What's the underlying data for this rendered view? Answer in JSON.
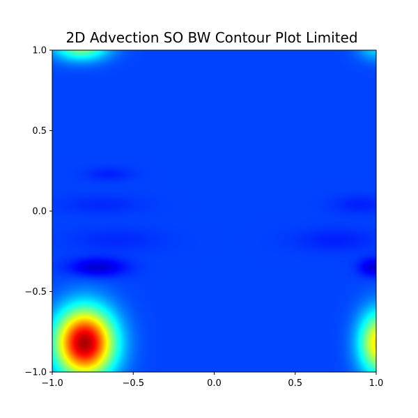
{
  "chart_data": {
    "type": "heatmap",
    "title": "2D Advection SO BW Contour Plot Limited",
    "xlabel": "",
    "ylabel": "",
    "xlim": [
      -1.0,
      1.0
    ],
    "ylim": [
      -1.0,
      1.0
    ],
    "xticks": [
      -1.0,
      -0.5,
      0.0,
      0.5,
      1.0
    ],
    "xtick_labels": [
      "−1.0",
      "−0.5",
      "0.0",
      "0.5",
      "1.0"
    ],
    "yticks": [
      -1.0,
      -0.5,
      0.0,
      0.5,
      1.0
    ],
    "ytick_labels": [
      "−1.0",
      "−0.5",
      "0.0",
      "0.5",
      "1.0"
    ],
    "colormap": "jet",
    "value_range": [
      0.0,
      1.0
    ],
    "grid": false,
    "legend": false,
    "colorbar": false,
    "background_value": 0.08,
    "features": [
      {
        "x": -0.8,
        "y": -0.82,
        "value": 0.95,
        "sx": 0.13,
        "sy": 0.15
      },
      {
        "x": -0.82,
        "y": 1.02,
        "value": 0.45,
        "sx": 0.12,
        "sy": 0.06
      },
      {
        "x": 1.02,
        "y": -0.82,
        "value": 0.62,
        "sx": 0.09,
        "sy": 0.14
      },
      {
        "x": 1.0,
        "y": 1.02,
        "value": 0.25,
        "sx": 0.08,
        "sy": 0.06
      },
      {
        "x": -0.72,
        "y": -0.35,
        "value": -0.05,
        "sx": 0.12,
        "sy": 0.04
      },
      {
        "x": 0.98,
        "y": -0.35,
        "value": -0.04,
        "sx": 0.06,
        "sy": 0.04
      },
      {
        "x": -0.7,
        "y": 0.04,
        "value": 0.05,
        "sx": 0.18,
        "sy": 0.04
      },
      {
        "x": -0.6,
        "y": -0.18,
        "value": 0.05,
        "sx": 0.2,
        "sy": 0.05
      },
      {
        "x": 0.75,
        "y": -0.18,
        "value": 0.04,
        "sx": 0.18,
        "sy": 0.05
      },
      {
        "x": 0.9,
        "y": 0.04,
        "value": 0.04,
        "sx": 0.12,
        "sy": 0.04
      },
      {
        "x": -0.65,
        "y": 0.23,
        "value": 0.04,
        "sx": 0.1,
        "sy": 0.03
      }
    ]
  }
}
